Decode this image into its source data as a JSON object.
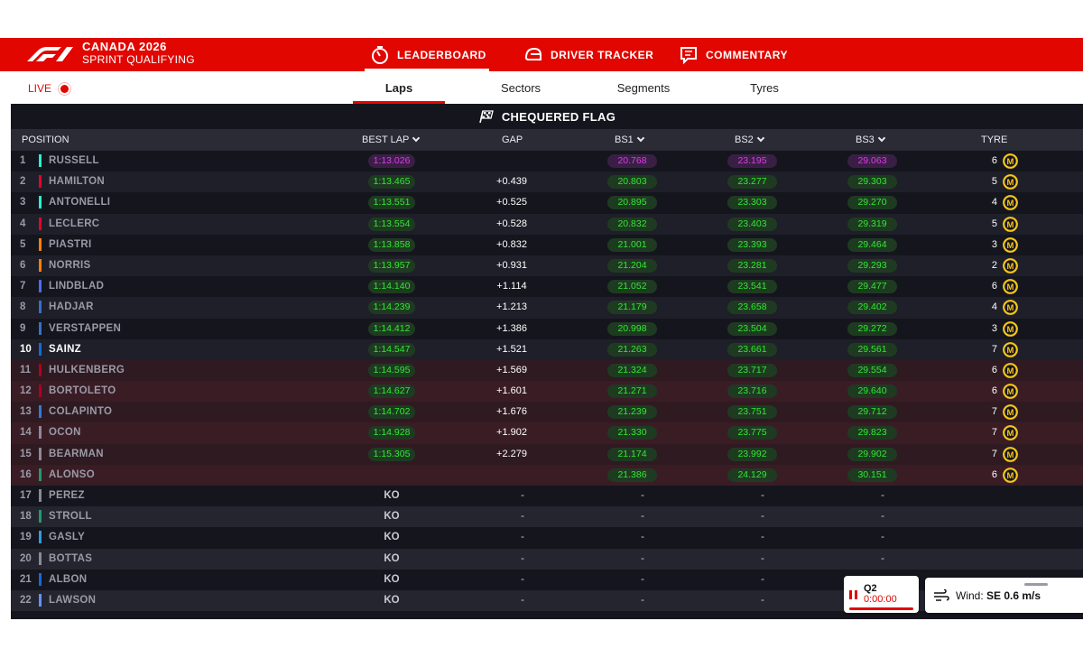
{
  "header": {
    "event_title": "CANADA 2026",
    "session": "SPRINT QUALIFYING",
    "nav": [
      {
        "label": "LEADERBOARD",
        "icon": "stopwatch-icon",
        "active": true
      },
      {
        "label": "DRIVER TRACKER",
        "icon": "helmet-icon",
        "active": false
      },
      {
        "label": "COMMENTARY",
        "icon": "chat-icon",
        "active": false
      }
    ]
  },
  "subnav": {
    "live_label": "LIVE",
    "tabs": [
      {
        "label": "Laps",
        "active": true
      },
      {
        "label": "Sectors",
        "active": false
      },
      {
        "label": "Segments",
        "active": false
      },
      {
        "label": "Tyres",
        "active": false
      }
    ]
  },
  "status_banner": "CHEQUERED FLAG",
  "columns": {
    "position": "POSITION",
    "best_lap": "BEST LAP",
    "gap": "GAP",
    "bs1": "BS1",
    "bs2": "BS2",
    "bs3": "BS3",
    "tyre": "TYRE"
  },
  "colors": {
    "f1_red": "#e10600",
    "green_time": "#31e831",
    "purple_time": "#dc3ce8",
    "tyre_medium": "#f5c518"
  },
  "drivers": [
    {
      "pos": "1",
      "name": "RUSSELL",
      "team_color": "#27f4d2",
      "best_lap": "1:13.026",
      "best_lap_purple": true,
      "gap": "",
      "bs1": "20.768",
      "bs2": "23.195",
      "bs3": "29.063",
      "purple": true,
      "laps": "6",
      "tyre": "M"
    },
    {
      "pos": "2",
      "name": "HAMILTON",
      "team_color": "#e8002d",
      "best_lap": "1:13.465",
      "gap": "+0.439",
      "bs1": "20.803",
      "bs2": "23.277",
      "bs3": "29.303",
      "laps": "5",
      "tyre": "M"
    },
    {
      "pos": "3",
      "name": "ANTONELLI",
      "team_color": "#27f4d2",
      "best_lap": "1:13.551",
      "gap": "+0.525",
      "bs1": "20.895",
      "bs2": "23.303",
      "bs3": "29.270",
      "laps": "4",
      "tyre": "M"
    },
    {
      "pos": "4",
      "name": "LECLERC",
      "team_color": "#e8002d",
      "best_lap": "1:13.554",
      "gap": "+0.528",
      "bs1": "20.832",
      "bs2": "23.403",
      "bs3": "29.319",
      "laps": "5",
      "tyre": "M"
    },
    {
      "pos": "5",
      "name": "PIASTRI",
      "team_color": "#ff8000",
      "best_lap": "1:13.858",
      "gap": "+0.832",
      "bs1": "21.001",
      "bs2": "23.393",
      "bs3": "29.464",
      "laps": "3",
      "tyre": "M"
    },
    {
      "pos": "6",
      "name": "NORRIS",
      "team_color": "#ff8000",
      "best_lap": "1:13.957",
      "gap": "+0.931",
      "bs1": "21.204",
      "bs2": "23.281",
      "bs3": "29.293",
      "laps": "2",
      "tyre": "M"
    },
    {
      "pos": "7",
      "name": "LINDBLAD",
      "team_color": "#4a6cf7",
      "best_lap": "1:14.140",
      "gap": "+1.114",
      "bs1": "21.052",
      "bs2": "23.541",
      "bs3": "29.477",
      "laps": "6",
      "tyre": "M"
    },
    {
      "pos": "8",
      "name": "HADJAR",
      "team_color": "#3671c6",
      "best_lap": "1:14.239",
      "gap": "+1.213",
      "bs1": "21.179",
      "bs2": "23.658",
      "bs3": "29.402",
      "laps": "4",
      "tyre": "M"
    },
    {
      "pos": "9",
      "name": "VERSTAPPEN",
      "team_color": "#3671c6",
      "best_lap": "1:14.412",
      "gap": "+1.386",
      "bs1": "20.998",
      "bs2": "23.504",
      "bs3": "29.272",
      "laps": "3",
      "tyre": "M"
    },
    {
      "pos": "10",
      "name": "SAINZ",
      "team_color": "#1868db",
      "best_lap": "1:14.547",
      "gap": "+1.521",
      "bs1": "21.263",
      "bs2": "23.661",
      "bs3": "29.561",
      "laps": "7",
      "tyre": "M",
      "bright": true
    },
    {
      "pos": "11",
      "name": "HULKENBERG",
      "team_color": "#b0001e",
      "best_lap": "1:14.595",
      "gap": "+1.569",
      "bs1": "21.324",
      "bs2": "23.717",
      "bs3": "29.554",
      "laps": "6",
      "tyre": "M",
      "elim": true
    },
    {
      "pos": "12",
      "name": "BORTOLETO",
      "team_color": "#b0001e",
      "best_lap": "1:14.627",
      "gap": "+1.601",
      "bs1": "21.271",
      "bs2": "23.716",
      "bs3": "29.640",
      "laps": "6",
      "tyre": "M",
      "elim": true
    },
    {
      "pos": "13",
      "name": "COLAPINTO",
      "team_color": "#2f7be0",
      "best_lap": "1:14.702",
      "gap": "+1.676",
      "bs1": "21.239",
      "bs2": "23.751",
      "bs3": "29.712",
      "laps": "7",
      "tyre": "M",
      "elim": true
    },
    {
      "pos": "14",
      "name": "OCON",
      "team_color": "#8a8a96",
      "best_lap": "1:14.928",
      "gap": "+1.902",
      "bs1": "21.330",
      "bs2": "23.775",
      "bs3": "29.823",
      "laps": "7",
      "tyre": "M",
      "elim": true
    },
    {
      "pos": "15",
      "name": "BEARMAN",
      "team_color": "#8a8a96",
      "best_lap": "1:15.305",
      "gap": "+2.279",
      "bs1": "21.174",
      "bs2": "23.992",
      "bs3": "29.902",
      "laps": "7",
      "tyre": "M",
      "elim": true
    },
    {
      "pos": "16",
      "name": "ALONSO",
      "team_color": "#229971",
      "best_lap": "",
      "gap": "",
      "bs1": "21.386",
      "bs2": "24.129",
      "bs3": "30.151",
      "laps": "6",
      "tyre": "M",
      "elim": true
    },
    {
      "pos": "17",
      "name": "PEREZ",
      "team_color": "#8a8a96",
      "ko": "KO",
      "dash": "-"
    },
    {
      "pos": "18",
      "name": "STROLL",
      "team_color": "#229971",
      "ko": "KO",
      "dash": "-"
    },
    {
      "pos": "19",
      "name": "GASLY",
      "team_color": "#2f9be0",
      "ko": "KO",
      "dash": "-"
    },
    {
      "pos": "20",
      "name": "BOTTAS",
      "team_color": "#8a8a96",
      "ko": "KO",
      "dash": "-"
    },
    {
      "pos": "21",
      "name": "ALBON",
      "team_color": "#1868db",
      "ko": "KO",
      "dash": "-"
    },
    {
      "pos": "22",
      "name": "LAWSON",
      "team_color": "#6692ff",
      "ko": "KO",
      "dash": "-"
    }
  ],
  "session_widget": {
    "label": "Q2",
    "time": "0:00:00",
    "icon": "pause-icon"
  },
  "weather_widget": {
    "label": "Wind:",
    "value": "SE 0.6 m/s",
    "icon": "wind-icon"
  }
}
